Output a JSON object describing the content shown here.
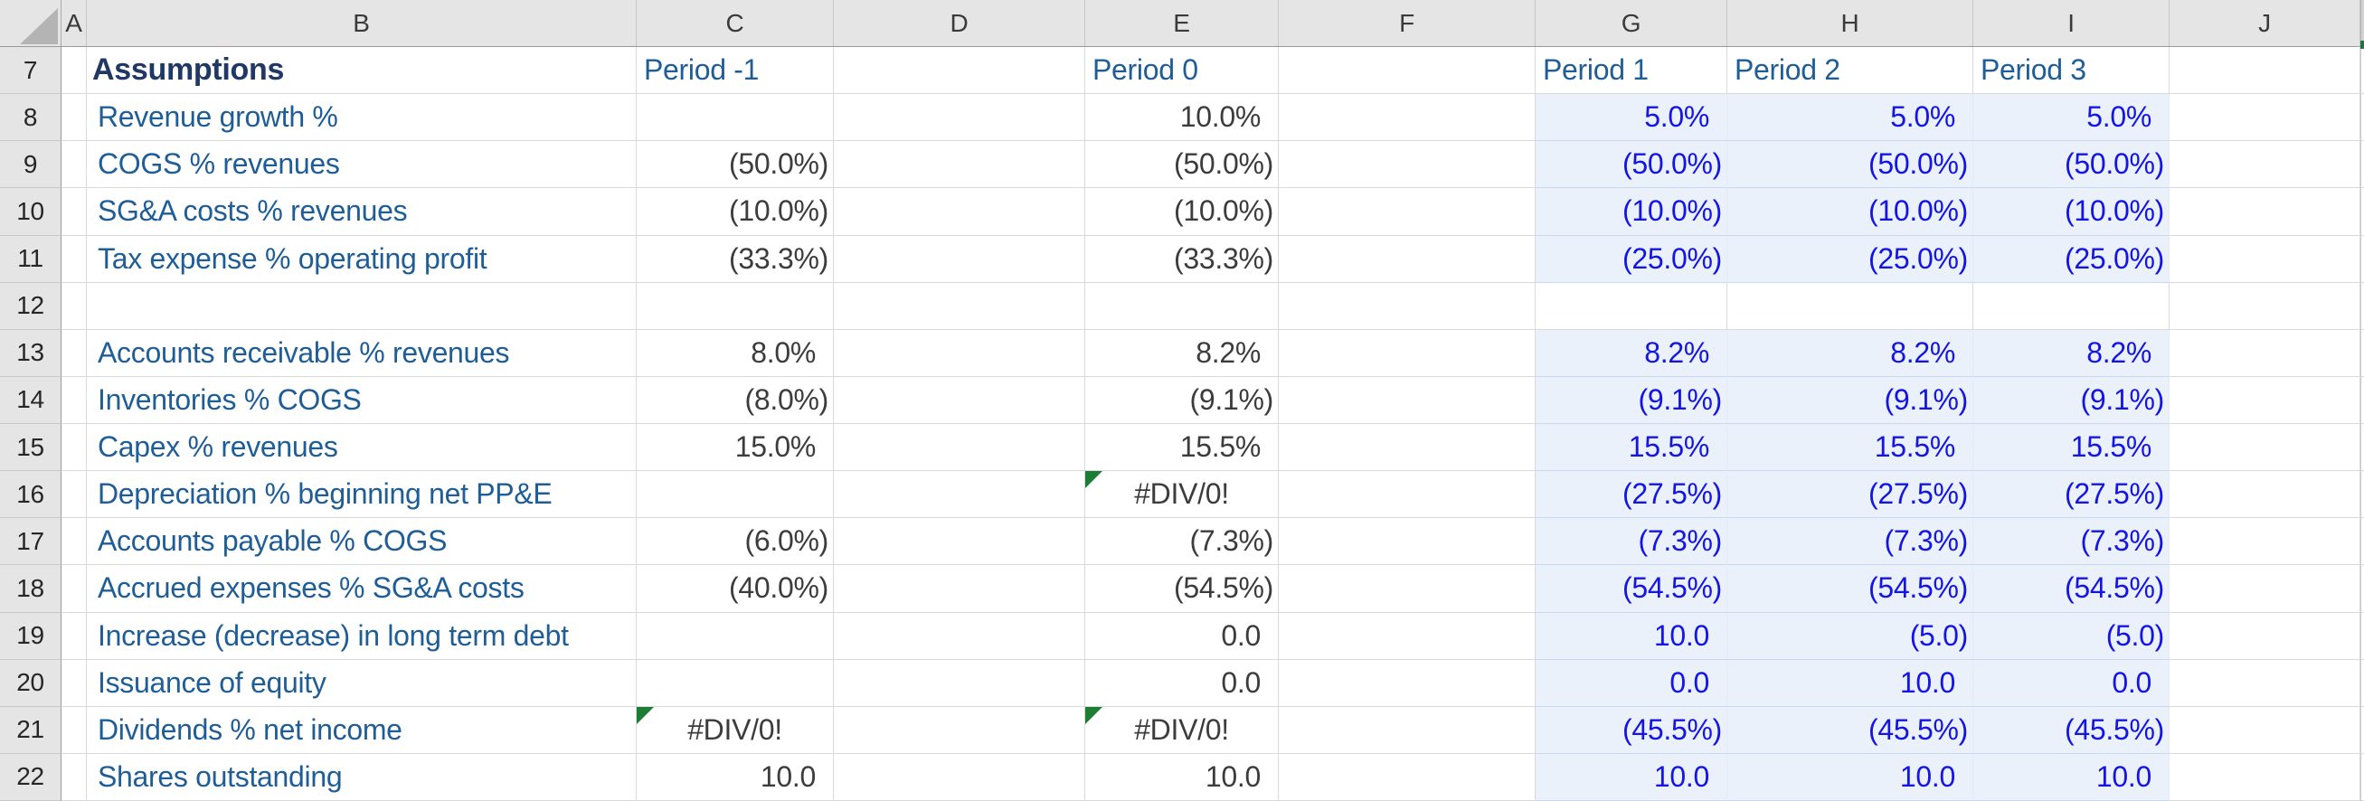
{
  "sheet": {
    "column_letters": [
      "A",
      "B",
      "C",
      "D",
      "E",
      "F",
      "G",
      "H",
      "I",
      "J"
    ],
    "section_title": "Assumptions",
    "period_headers": [
      "Period -1",
      "Period 0",
      "Period 1",
      "Period 2",
      "Period 3"
    ]
  },
  "colors": {
    "forecast_fill": "#eaf1fb",
    "forecast_text_blue": "#1414e6",
    "label_blue": "#1f5d97",
    "title_navy": "#1f3864",
    "historical_text": "#3c3c3c",
    "error_indicator_green": "#1e7d34",
    "header_gray": "#e5e5e5"
  },
  "rows": [
    {
      "num": "7",
      "type": "section_header",
      "b": "Assumptions",
      "c": "Period -1",
      "e": "Period 0",
      "g": "Period 1",
      "h": "Period 2",
      "i": "Period 3"
    },
    {
      "num": "8",
      "b": "Revenue growth %",
      "c": "",
      "e": "10.0%",
      "g": "5.0%",
      "h": "5.0%",
      "i": "5.0%",
      "fill": true
    },
    {
      "num": "9",
      "b": "COGS % revenues",
      "c": "(50.0%)",
      "e": "(50.0%)",
      "g": "(50.0%)",
      "h": "(50.0%)",
      "i": "(50.0%)",
      "fill": true
    },
    {
      "num": "10",
      "b": "SG&A costs % revenues",
      "c": "(10.0%)",
      "e": "(10.0%)",
      "g": "(10.0%)",
      "h": "(10.0%)",
      "i": "(10.0%)",
      "fill": true
    },
    {
      "num": "11",
      "b": "Tax expense % operating profit",
      "c": "(33.3%)",
      "e": "(33.3%)",
      "g": "(25.0%)",
      "h": "(25.0%)",
      "i": "(25.0%)",
      "fill": true
    },
    {
      "num": "12",
      "b": "",
      "c": "",
      "e": "",
      "g": "",
      "h": "",
      "i": ""
    },
    {
      "num": "13",
      "b": "Accounts receivable % revenues",
      "c": "8.0%",
      "e": "8.2%",
      "g": "8.2%",
      "h": "8.2%",
      "i": "8.2%",
      "fill": true
    },
    {
      "num": "14",
      "b": "Inventories % COGS",
      "c": "(8.0%)",
      "e": "(9.1%)",
      "g": "(9.1%)",
      "h": "(9.1%)",
      "i": "(9.1%)",
      "fill": true
    },
    {
      "num": "15",
      "b": "Capex % revenues",
      "c": "15.0%",
      "e": "15.5%",
      "g": "15.5%",
      "h": "15.5%",
      "i": "15.5%",
      "fill": true
    },
    {
      "num": "16",
      "b": "Depreciation % beginning net PP&E",
      "c": "",
      "e": "#DIV/0!",
      "e_error": true,
      "g": "(27.5%)",
      "h": "(27.5%)",
      "i": "(27.5%)",
      "fill": true
    },
    {
      "num": "17",
      "b": "Accounts payable % COGS",
      "c": "(6.0%)",
      "e": "(7.3%)",
      "g": "(7.3%)",
      "h": "(7.3%)",
      "i": "(7.3%)",
      "fill": true
    },
    {
      "num": "18",
      "b": "Accrued expenses % SG&A costs",
      "c": "(40.0%)",
      "e": "(54.5%)",
      "g": "(54.5%)",
      "h": "(54.5%)",
      "i": "(54.5%)",
      "fill": true
    },
    {
      "num": "19",
      "b": "Increase (decrease) in long term debt",
      "c": "",
      "e": "0.0",
      "g": "10.0",
      "h": "(5.0)",
      "i": "(5.0)",
      "fill": true
    },
    {
      "num": "20",
      "b": "Issuance of equity",
      "c": "",
      "e": "0.0",
      "g": "0.0",
      "h": "10.0",
      "i": "0.0",
      "fill": true
    },
    {
      "num": "21",
      "b": "Dividends % net income",
      "c": "#DIV/0!",
      "c_error": true,
      "e": "#DIV/0!",
      "e_error": true,
      "g": "(45.5%)",
      "h": "(45.5%)",
      "i": "(45.5%)",
      "fill": true
    },
    {
      "num": "22",
      "b": "Shares outstanding",
      "c": "10.0",
      "e": "10.0",
      "g": "10.0",
      "h": "10.0",
      "i": "10.0",
      "fill": true
    }
  ]
}
